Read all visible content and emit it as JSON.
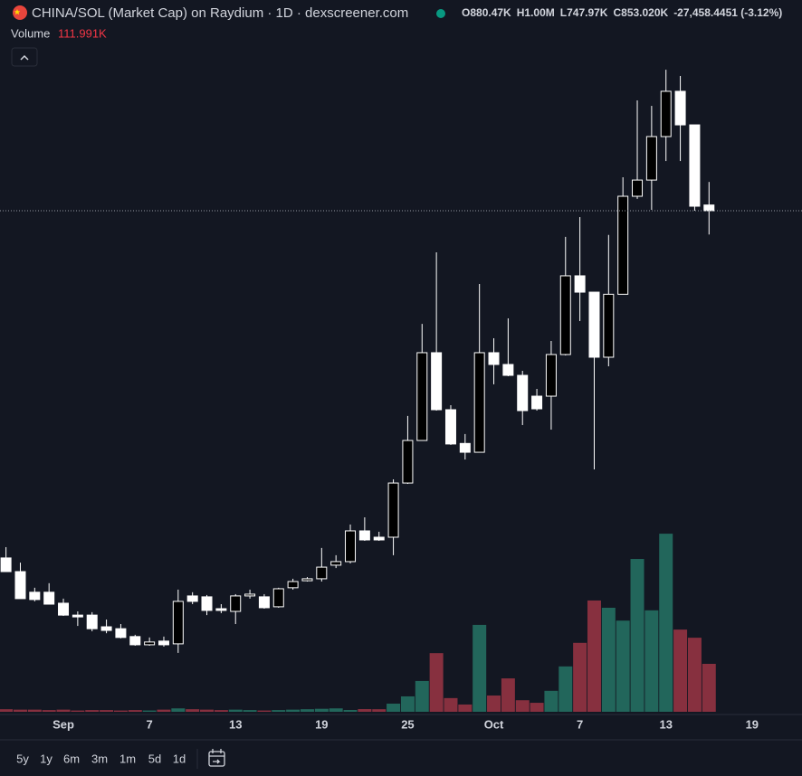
{
  "header": {
    "title": "CHINA/SOL (Market Cap) on Raydium · 1D · dexscreener.com",
    "ohlc": [
      {
        "key": "O",
        "value": "880.47K"
      },
      {
        "key": "H",
        "value": "1.00M"
      },
      {
        "key": "L",
        "value": "747.97K"
      },
      {
        "key": "C",
        "value": "853.020K"
      }
    ],
    "change": "-27,458.4451 (-3.12%)",
    "volume_label": "Volume",
    "volume_value": "111.991K"
  },
  "chart_data": {
    "type": "candlestick",
    "log_scale": true,
    "ylim": [
      67.6,
      2239
    ],
    "volume_ylim": [
      0,
      450
    ],
    "up_color": "#000000",
    "down_color": "#ffffff",
    "volume_up_color": "#22665b",
    "volume_down_color": "#87303f",
    "categories": [
      null,
      null,
      null,
      null,
      "Sep",
      null,
      null,
      null,
      null,
      null,
      "7",
      null,
      null,
      null,
      null,
      null,
      "13",
      null,
      null,
      null,
      null,
      null,
      "19",
      null,
      null,
      null,
      null,
      null,
      "25",
      null,
      null,
      null,
      null,
      null,
      "Oct",
      null,
      null,
      null,
      null,
      null,
      "7",
      null,
      null,
      null,
      null,
      null,
      "13",
      null,
      null,
      null,
      null,
      null,
      "19"
    ],
    "open": [
      125.1,
      116.0,
      103.5,
      103.5,
      97.4,
      91.2,
      91.2,
      85.5,
      84.6,
      81.0,
      77.4,
      79.0,
      77.8,
      101.4,
      100.9,
      94.5,
      93.1,
      101.4,
      100.9,
      95.5,
      106.1,
      110.3,
      111.5,
      120.2,
      122.6,
      145.3,
      140.3,
      140.3,
      189.3,
      239.5,
      389.1,
      283.9,
      235.6,
      224.4,
      389.1,
      364.6,
      343.3,
      306.0,
      306.0,
      385.2,
      595.2,
      543.8,
      379.5,
      537.5,
      924.0,
      1010.6,
      1285.3,
      1650.8,
      1371.2,
      880.47,
      null,
      null,
      null
    ],
    "high": [
      132.8,
      121.9,
      106.1,
      108.8,
      99.9,
      93.1,
      92.7,
      89.0,
      86.8,
      81.8,
      80.6,
      81.0,
      105.0,
      103.5,
      101.9,
      96.9,
      102.4,
      105.0,
      102.4,
      106.1,
      111.5,
      112.5,
      132.2,
      127.0,
      150.5,
      156.6,
      144.6,
      193.2,
      274.3,
      456.4,
      677.8,
      291.1,
      248.2,
      569.0,
      421.5,
      470.5,
      352.0,
      318.5,
      415.2,
      738.2,
      823.5,
      543.8,
      746.0,
      1026.4,
      1570,
      1523,
      1860,
      1797,
      1371.2,
      1000,
      null,
      null,
      null
    ],
    "low": [
      116.0,
      99.9,
      98.4,
      96.9,
      90.8,
      85.9,
      83.4,
      82.5,
      80.2,
      77.0,
      77.0,
      76.6,
      74.0,
      96.9,
      91.2,
      92.2,
      86.8,
      99.9,
      94.5,
      95.0,
      105.0,
      109.8,
      109.8,
      118.3,
      121.4,
      137.5,
      137.5,
      127.0,
      188.4,
      239.5,
      282.5,
      233.7,
      215.6,
      224.4,
      326.7,
      341.6,
      260.8,
      282.5,
      254.3,
      383.3,
      463.5,
      204.1,
      360.9,
      537.5,
      910.8,
      857.3,
      1122.6,
      1122.6,
      853.0,
      747.97,
      null,
      null,
      null
    ],
    "close": [
      116.0,
      99.9,
      99.4,
      96.9,
      91.2,
      90.3,
      84.6,
      83.8,
      80.6,
      77.4,
      78.6,
      77.4,
      98.4,
      98.4,
      93.6,
      93.6,
      101.4,
      102.4,
      95.0,
      105.5,
      109.8,
      111.5,
      118.9,
      122.6,
      145.3,
      138.2,
      138.2,
      189.3,
      239.5,
      389.1,
      283.9,
      234.9,
      224.4,
      389.1,
      364.6,
      343.3,
      282.5,
      285.3,
      385.2,
      595.2,
      543.8,
      379.5,
      537.5,
      924.0,
      1010.6,
      1285.3,
      1650.8,
      1371.2,
      874.5,
      853.02,
      null,
      null,
      null
    ],
    "volume": [
      6,
      5,
      5,
      4,
      5,
      3,
      4,
      4,
      3,
      4,
      3,
      5,
      8,
      6,
      5,
      4,
      5,
      4,
      3,
      4,
      5,
      6,
      7,
      8,
      4.2,
      6.3,
      6,
      19,
      36,
      72,
      137,
      32,
      17,
      203,
      38,
      78,
      27,
      21,
      49,
      106,
      161,
      260,
      243,
      213,
      357,
      237,
      416,
      192,
      173,
      111.991,
      null,
      null,
      null
    ]
  },
  "toolbar": {
    "ranges": [
      "5y",
      "1y",
      "6m",
      "3m",
      "1m",
      "5d",
      "1d"
    ]
  }
}
